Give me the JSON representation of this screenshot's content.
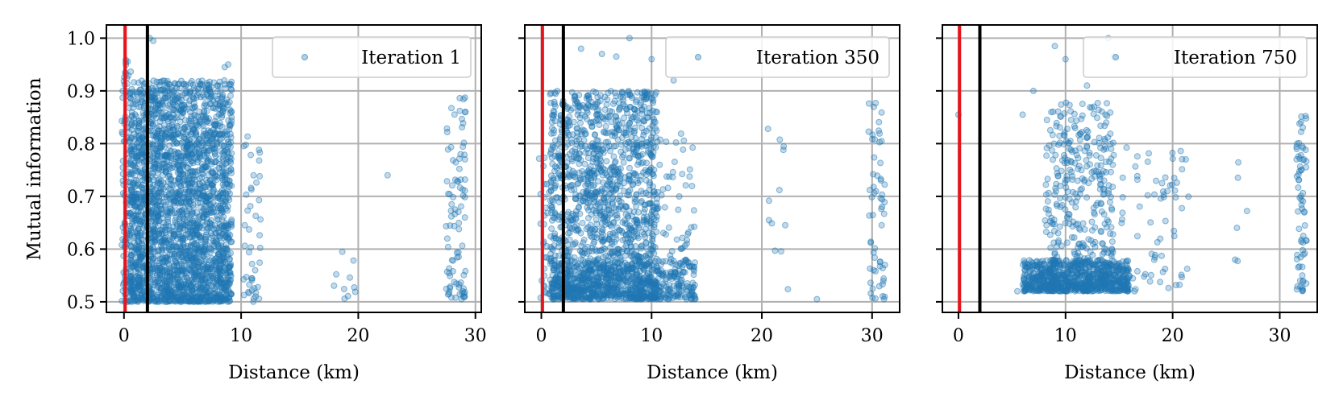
{
  "chart_data": [
    {
      "type": "scatter",
      "panel": "iteration-1",
      "legend": "Iteration 1",
      "xlabel": "Distance (km)",
      "ylabel": "Mutual information",
      "xlim": [
        -1.5,
        30.5
      ],
      "ylim": [
        0.48,
        1.025
      ],
      "xticks": [
        0,
        10,
        20,
        30
      ],
      "yticks": [
        0.5,
        0.6,
        0.7,
        0.8,
        0.9,
        1.0
      ],
      "ytick_labels": [
        "0.5",
        "0.6",
        "0.7",
        "0.8",
        "0.9",
        "1.0"
      ],
      "grid": true,
      "legend_position": "top-right",
      "vlines": [
        {
          "x": 0.1,
          "color": "#e8141c"
        },
        {
          "x": 2.0,
          "color": "#000000"
        }
      ],
      "clusters": [
        {
          "x_min": -0.2,
          "x_max": 0.7,
          "y_min": 0.5,
          "y_max": 0.98,
          "n": 140
        },
        {
          "x_min": 0.5,
          "x_max": 9.2,
          "y_min": 0.5,
          "y_max": 0.92,
          "n": 2600
        },
        {
          "x_min": 10.2,
          "x_max": 11.8,
          "y_min": 0.5,
          "y_max": 0.83,
          "n": 45
        },
        {
          "x_min": 17.9,
          "x_max": 19.8,
          "y_min": 0.505,
          "y_max": 0.61,
          "n": 10
        },
        {
          "x_min": 27.4,
          "x_max": 29.2,
          "y_min": 0.505,
          "y_max": 0.89,
          "n": 90
        }
      ],
      "points": [
        {
          "x": 2.2,
          "y": 1.0
        },
        {
          "x": 2.5,
          "y": 0.995
        },
        {
          "x": 22.5,
          "y": 0.74
        },
        {
          "x": 8.6,
          "y": 0.945
        },
        {
          "x": 8.9,
          "y": 0.95
        },
        {
          "x": 29.1,
          "y": 0.66
        }
      ]
    },
    {
      "type": "scatter",
      "panel": "iteration-350",
      "legend": "Iteration 350",
      "xlabel": "Distance (km)",
      "xlim": [
        -1.5,
        32.5
      ],
      "ylim": [
        0.48,
        1.025
      ],
      "xticks": [
        0,
        10,
        20,
        30
      ],
      "grid": true,
      "legend_position": "top-right",
      "vlines": [
        {
          "x": 0.1,
          "color": "#e8141c"
        },
        {
          "x": 2.0,
          "color": "#000000"
        }
      ],
      "clusters": [
        {
          "x_min": -0.2,
          "x_max": 1.0,
          "y_min": 0.505,
          "y_max": 0.78,
          "n": 40
        },
        {
          "x_min": 0.8,
          "x_max": 10.5,
          "y_min": 0.505,
          "y_max": 0.9,
          "n": 1500
        },
        {
          "x_min": 0.8,
          "x_max": 14.0,
          "y_min": 0.505,
          "y_max": 0.58,
          "n": 500
        },
        {
          "x_min": 10.5,
          "x_max": 14.0,
          "y_min": 0.52,
          "y_max": 0.82,
          "n": 60
        },
        {
          "x_min": 20.5,
          "x_max": 22.5,
          "y_min": 0.51,
          "y_max": 0.86,
          "n": 12
        },
        {
          "x_min": 29.6,
          "x_max": 31.2,
          "y_min": 0.505,
          "y_max": 0.88,
          "n": 60
        }
      ],
      "points": [
        {
          "x": 8.0,
          "y": 1.0
        },
        {
          "x": 3.6,
          "y": 0.98
        },
        {
          "x": 5.5,
          "y": 0.97
        },
        {
          "x": 6.8,
          "y": 0.965
        },
        {
          "x": 10.0,
          "y": 0.96
        },
        {
          "x": 12.0,
          "y": 0.92
        },
        {
          "x": 25.0,
          "y": 0.505
        }
      ]
    },
    {
      "type": "scatter",
      "panel": "iteration-750",
      "legend": "Iteration 750",
      "xlabel": "Distance (km)",
      "xlim": [
        -1.5,
        33.5
      ],
      "ylim": [
        0.48,
        1.025
      ],
      "xticks": [
        0,
        10,
        20,
        30
      ],
      "grid": true,
      "legend_position": "top-right",
      "vlines": [
        {
          "x": 0.1,
          "color": "#e8141c"
        },
        {
          "x": 2.0,
          "color": "#000000"
        }
      ],
      "clusters": [
        {
          "x_min": 6.0,
          "x_max": 16.0,
          "y_min": 0.52,
          "y_max": 0.58,
          "n": 700
        },
        {
          "x_min": 8.0,
          "x_max": 14.5,
          "y_min": 0.52,
          "y_max": 0.88,
          "n": 420
        },
        {
          "x_min": 15.0,
          "x_max": 21.5,
          "y_min": 0.52,
          "y_max": 0.8,
          "n": 70
        },
        {
          "x_min": 25.5,
          "x_max": 27.0,
          "y_min": 0.52,
          "y_max": 0.78,
          "n": 6
        },
        {
          "x_min": 31.5,
          "x_max": 32.5,
          "y_min": 0.52,
          "y_max": 0.86,
          "n": 70
        }
      ],
      "points": [
        {
          "x": 0.0,
          "y": 0.855
        },
        {
          "x": 5.5,
          "y": 0.52
        },
        {
          "x": 6.0,
          "y": 0.855
        },
        {
          "x": 7.0,
          "y": 0.9
        },
        {
          "x": 9.0,
          "y": 0.985
        },
        {
          "x": 10.0,
          "y": 0.96
        },
        {
          "x": 12.0,
          "y": 0.91
        },
        {
          "x": 14.0,
          "y": 1.0
        },
        {
          "x": 14.5,
          "y": 0.965
        }
      ]
    }
  ]
}
